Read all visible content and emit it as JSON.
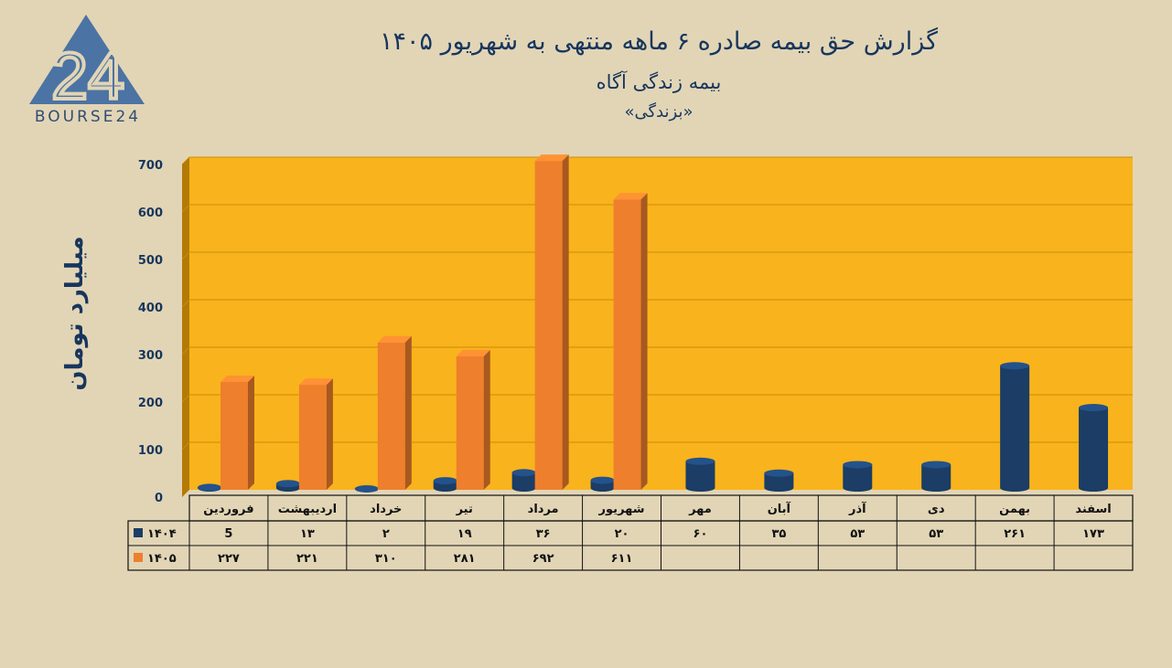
{
  "logo": {
    "number": "24",
    "text": "BOURSE24"
  },
  "title": "گزارش  حق بیمه صادره ۶ ماهه منتهی به شهریور ۱۴۰۵",
  "subtitle": "بیمه زندگی آگاه",
  "subtitle2": "«بزندگی»",
  "colors": {
    "s1404": "#1b3d66",
    "s1405": "#ee7f2d",
    "plot_bg": "#f9b31c",
    "page_bg": "#e2d5b6"
  },
  "chart_data": {
    "type": "bar",
    "title": "گزارش  حق بیمه صادره ۶ ماهه منتهی به شهریور ۱۴۰۵",
    "ylabel": "میلیارد تومان",
    "ylim": [
      0,
      700
    ],
    "yticks": [
      0,
      100,
      200,
      300,
      400,
      500,
      600,
      700
    ],
    "ytick_labels": [
      "0",
      "100",
      "200",
      "300",
      "400",
      "500",
      "600",
      "700"
    ],
    "grid": true,
    "categories": [
      "فروردین",
      "اردیبهشت",
      "خرداد",
      "تیر",
      "مرداد",
      "شهریور",
      "مهر",
      "آبان",
      "آذر",
      "دی",
      "بهمن",
      "اسفند"
    ],
    "series": [
      {
        "name": "۱۴۰۴",
        "values": [
          5,
          13,
          2,
          19,
          36,
          20,
          60,
          35,
          53,
          53,
          261,
          173
        ],
        "labels": [
          "5",
          "۱۳",
          "۲",
          "۱۹",
          "۳۶",
          "۲۰",
          "۶۰",
          "۳۵",
          "۵۳",
          "۵۳",
          "۲۶۱",
          "۱۷۳"
        ]
      },
      {
        "name": "۱۴۰۵",
        "values": [
          227,
          221,
          310,
          281,
          692,
          611,
          null,
          null,
          null,
          null,
          null,
          null
        ],
        "labels": [
          "۲۲۷",
          "۲۲۱",
          "۳۱۰",
          "۲۸۱",
          "۶۹۲",
          "۶۱۱",
          "",
          "",
          "",
          "",
          "",
          ""
        ]
      }
    ]
  }
}
